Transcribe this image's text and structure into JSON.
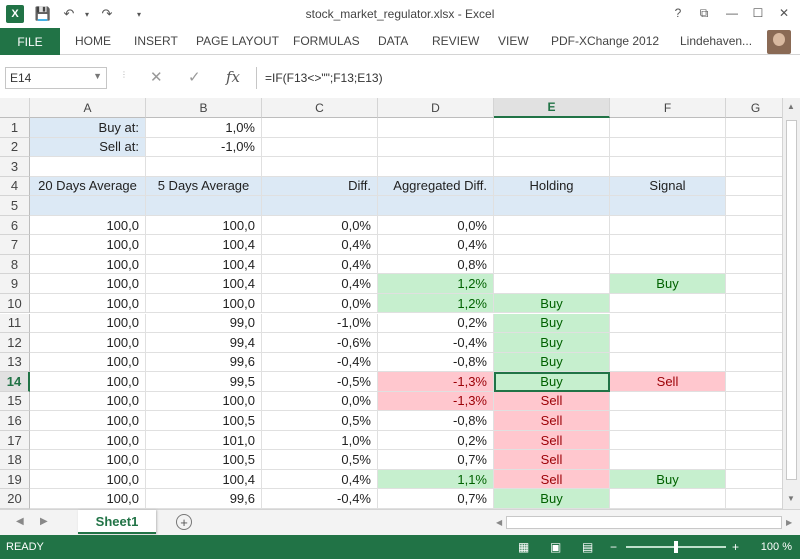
{
  "window": {
    "title": "stock_market_regulator.xlsx - Excel",
    "quick_access": {
      "save_icon": "save-icon",
      "undo_icon": "undo-icon",
      "redo_icon": "redo-icon"
    },
    "controls": [
      "?",
      "⧉",
      "—",
      "☐",
      "✕"
    ]
  },
  "ribbon": {
    "file_label": "FILE",
    "tabs": [
      "HOME",
      "INSERT",
      "PAGE LAYOUT",
      "FORMULAS",
      "DATA",
      "REVIEW",
      "VIEW",
      "PDF-XChange 2012"
    ],
    "user": "Lindehaven..."
  },
  "formula_bar": {
    "name_box": "E14",
    "cancel": "✕",
    "enter": "✓",
    "fx": "fx",
    "formula": "=IF(F13<>\"\";F13;E13)"
  },
  "columns": [
    "A",
    "B",
    "C",
    "D",
    "E",
    "F",
    "G"
  ],
  "selected_column": "E",
  "selected_row": "14",
  "rows": [
    {
      "n": "1",
      "cells": [
        "Buy at:",
        "1,0%",
        "",
        "",
        "",
        "",
        ""
      ]
    },
    {
      "n": "2",
      "cells": [
        "Sell at:",
        "-1,0%",
        "",
        "",
        "",
        "",
        ""
      ]
    },
    {
      "n": "3",
      "cells": [
        "",
        "",
        "",
        "",
        "",
        "",
        ""
      ]
    },
    {
      "n": "4",
      "cells": [
        "20 Days Average",
        "5 Days Average",
        "Diff.",
        "Aggregated Diff.",
        "Holding",
        "Signal",
        ""
      ]
    },
    {
      "n": "5",
      "cells": [
        "",
        "",
        "",
        "",
        "",
        "",
        ""
      ]
    },
    {
      "n": "6",
      "cells": [
        "100,0",
        "100,0",
        "0,0%",
        "0,0%",
        "",
        "",
        ""
      ]
    },
    {
      "n": "7",
      "cells": [
        "100,0",
        "100,4",
        "0,4%",
        "0,4%",
        "",
        "",
        ""
      ]
    },
    {
      "n": "8",
      "cells": [
        "100,0",
        "100,4",
        "0,4%",
        "0,8%",
        "",
        "",
        ""
      ]
    },
    {
      "n": "9",
      "cells": [
        "100,0",
        "100,4",
        "0,4%",
        "1,2%",
        "",
        "Buy",
        ""
      ]
    },
    {
      "n": "10",
      "cells": [
        "100,0",
        "100,0",
        "0,0%",
        "1,2%",
        "Buy",
        "",
        ""
      ]
    },
    {
      "n": "11",
      "cells": [
        "100,0",
        "99,0",
        "-1,0%",
        "0,2%",
        "Buy",
        "",
        ""
      ]
    },
    {
      "n": "12",
      "cells": [
        "100,0",
        "99,4",
        "-0,6%",
        "-0,4%",
        "Buy",
        "",
        ""
      ]
    },
    {
      "n": "13",
      "cells": [
        "100,0",
        "99,6",
        "-0,4%",
        "-0,8%",
        "Buy",
        "",
        ""
      ]
    },
    {
      "n": "14",
      "cells": [
        "100,0",
        "99,5",
        "-0,5%",
        "-1,3%",
        "Buy",
        "Sell",
        ""
      ]
    },
    {
      "n": "15",
      "cells": [
        "100,0",
        "100,0",
        "0,0%",
        "-1,3%",
        "Sell",
        "",
        ""
      ]
    },
    {
      "n": "16",
      "cells": [
        "100,0",
        "100,5",
        "0,5%",
        "-0,8%",
        "Sell",
        "",
        ""
      ]
    },
    {
      "n": "17",
      "cells": [
        "100,0",
        "101,0",
        "1,0%",
        "0,2%",
        "Sell",
        "",
        ""
      ]
    },
    {
      "n": "18",
      "cells": [
        "100,0",
        "100,5",
        "0,5%",
        "0,7%",
        "Sell",
        "",
        ""
      ]
    },
    {
      "n": "19",
      "cells": [
        "100,0",
        "100,4",
        "0,4%",
        "1,1%",
        "Sell",
        "Buy",
        ""
      ]
    },
    {
      "n": "20",
      "cells": [
        "100,0",
        "99,6",
        "-0,4%",
        "0,7%",
        "Buy",
        "",
        ""
      ]
    }
  ],
  "conditional_colors": {
    "green_fill": "#c6efce",
    "green_text": "#006100",
    "red_fill": "#ffc7ce",
    "red_text": "#9c0006",
    "header_fill": "#dce9f5"
  },
  "sheet_tabs": [
    "Sheet1"
  ],
  "status": {
    "text": "READY",
    "zoom": "100 %"
  },
  "accent": "#217346"
}
